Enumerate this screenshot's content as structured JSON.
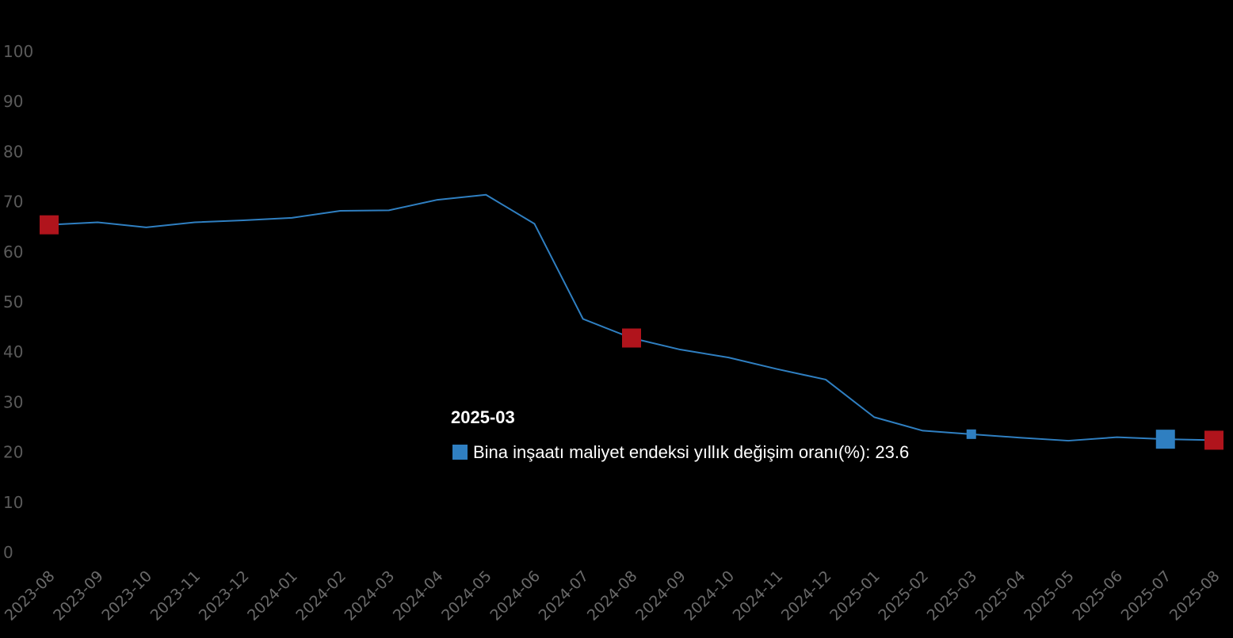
{
  "chart_data": {
    "type": "line",
    "title": "",
    "xlabel": "",
    "ylabel": "",
    "ylim": [
      0,
      100
    ],
    "yticks": [
      0,
      10,
      20,
      30,
      40,
      50,
      60,
      70,
      80,
      90,
      100
    ],
    "grid": false,
    "categories": [
      "2023-08",
      "2023-09",
      "2023-10",
      "2023-11",
      "2023-12",
      "2024-01",
      "2024-02",
      "2024-03",
      "2024-04",
      "2024-05",
      "2024-06",
      "2024-07",
      "2024-08",
      "2024-09",
      "2024-10",
      "2024-11",
      "2024-12",
      "2025-01",
      "2025-02",
      "2025-03",
      "2025-04",
      "2025-05",
      "2025-06",
      "2025-07",
      "2025-08"
    ],
    "series": [
      {
        "name": "Bina inşaatı maliyet endeksi yıllık değişim oranı(%)",
        "color": "#2f7fc1",
        "values": [
          65.4,
          65.9,
          64.9,
          65.9,
          66.3,
          66.8,
          68.2,
          68.3,
          70.4,
          71.4,
          65.6,
          46.6,
          42.8,
          40.5,
          38.9,
          36.6,
          34.5,
          27.0,
          24.3,
          23.6,
          22.9,
          22.3,
          23.0,
          22.6,
          22.4
        ]
      }
    ],
    "highlighted_markers": [
      {
        "category": "2023-08",
        "color": "#b0141c"
      },
      {
        "category": "2024-08",
        "color": "#b0141c"
      },
      {
        "category": "2025-07",
        "color": "#2f7fc1"
      },
      {
        "category": "2025-08",
        "color": "#b0141c"
      }
    ],
    "tooltip": {
      "category": "2025-03",
      "title": "2025-03",
      "text": "Bina inşaatı maliyet endeksi yıllık değişim oranı(%): 23.6",
      "swatch_color": "#2f7fc1"
    }
  }
}
